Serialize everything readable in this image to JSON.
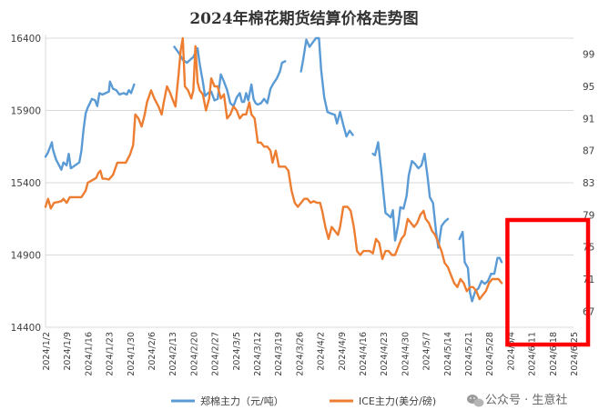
{
  "chart_data": {
    "type": "line",
    "title": "2024年棉花期货结算价格走势图",
    "left_axis": {
      "ticks": [
        14400,
        14900,
        15400,
        15900,
        16400
      ],
      "range": [
        14400,
        16400
      ]
    },
    "right_axis": {
      "ticks": [
        67,
        71,
        75,
        79,
        83,
        87,
        91,
        95,
        99
      ],
      "range": [
        65,
        101
      ]
    },
    "x_labels": [
      "2024/1/2",
      "2024/1/9",
      "2024/1/16",
      "2024/1/23",
      "2024/1/30",
      "2024/2/6",
      "2024/2/13",
      "2024/2/20",
      "2024/2/27",
      "2024/3/5",
      "2024/3/12",
      "2024/3/19",
      "2024/3/26",
      "2024/4/2",
      "2024/4/9",
      "2024/4/16",
      "2024/4/23",
      "2024/4/30",
      "2024/5/7",
      "2024/5/14",
      "2024/5/21",
      "2024/5/28",
      "2024/6/4",
      "2024/6/11",
      "2024/6/18",
      "2024/6/25"
    ],
    "series": [
      {
        "name": "郑棉主力（元/吨）",
        "axis": "left",
        "color": "#5b9bd5",
        "points": [
          [
            0,
            15580
          ],
          [
            0.12,
            15610
          ],
          [
            0.3,
            15680
          ],
          [
            0.35,
            15630
          ],
          [
            0.5,
            15560
          ],
          [
            0.75,
            15490
          ],
          [
            0.85,
            15540
          ],
          [
            1.0,
            15520
          ],
          [
            1.1,
            15600
          ],
          [
            1.2,
            15500
          ],
          [
            1.4,
            15520
          ],
          [
            1.6,
            15540
          ],
          [
            1.7,
            15620
          ],
          [
            1.8,
            15770
          ],
          [
            1.9,
            15880
          ],
          [
            2.0,
            15920
          ],
          [
            2.2,
            15980
          ],
          [
            2.35,
            15970
          ],
          [
            2.45,
            15930
          ],
          [
            2.55,
            16020
          ],
          [
            2.7,
            16010
          ],
          [
            2.85,
            16020
          ],
          [
            3.0,
            16030
          ],
          [
            3.05,
            16100
          ],
          [
            3.2,
            16050
          ],
          [
            3.35,
            16040
          ],
          [
            3.5,
            16010
          ],
          [
            3.7,
            16020
          ],
          [
            3.85,
            16010
          ],
          [
            3.95,
            16040
          ],
          [
            4.05,
            16020
          ],
          [
            4.2,
            16080
          ],
          null,
          [
            6.1,
            16340
          ],
          [
            6.3,
            16300
          ],
          [
            6.5,
            16250
          ],
          [
            6.7,
            16230
          ],
          [
            6.85,
            16250
          ],
          [
            7.0,
            16270
          ],
          [
            7.2,
            16330
          ],
          [
            7.3,
            16220
          ],
          [
            7.45,
            16100
          ],
          [
            7.55,
            16000
          ],
          [
            7.7,
            16020
          ],
          [
            7.85,
            16030
          ],
          [
            8.0,
            15970
          ],
          [
            8.15,
            15980
          ],
          [
            8.3,
            16150
          ],
          [
            8.45,
            16100
          ],
          [
            8.6,
            16040
          ],
          [
            8.75,
            15950
          ],
          [
            8.9,
            15930
          ],
          [
            9.05,
            15990
          ],
          [
            9.2,
            16020
          ],
          [
            9.3,
            15960
          ],
          [
            9.4,
            15960
          ],
          [
            9.5,
            16020
          ],
          [
            9.6,
            15970
          ],
          [
            9.75,
            16080
          ],
          [
            9.85,
            15980
          ],
          [
            9.95,
            15950
          ],
          [
            10.05,
            15940
          ],
          [
            10.2,
            15950
          ],
          [
            10.35,
            15980
          ],
          [
            10.5,
            15950
          ],
          [
            10.65,
            16050
          ],
          [
            10.8,
            16090
          ],
          [
            10.95,
            16120
          ],
          [
            11.1,
            16170
          ],
          [
            11.2,
            16230
          ],
          [
            11.35,
            16240
          ],
          null,
          [
            12.1,
            16170
          ],
          [
            12.2,
            16250
          ],
          [
            12.35,
            16390
          ],
          [
            12.5,
            16340
          ],
          [
            12.65,
            16370
          ],
          [
            12.8,
            16400
          ],
          [
            12.95,
            16400
          ],
          [
            13.05,
            16180
          ],
          [
            13.2,
            15990
          ],
          [
            13.35,
            15890
          ],
          [
            13.5,
            15880
          ],
          [
            13.7,
            15870
          ],
          [
            13.8,
            15810
          ],
          [
            13.95,
            15890
          ],
          [
            14.1,
            15800
          ],
          [
            14.25,
            15720
          ],
          [
            14.4,
            15760
          ],
          [
            14.55,
            15730
          ],
          null,
          [
            15.5,
            15600
          ],
          [
            15.6,
            15590
          ],
          [
            15.75,
            15680
          ],
          [
            15.9,
            15480
          ],
          [
            16.0,
            15330
          ],
          [
            16.1,
            15190
          ],
          [
            16.2,
            15180
          ],
          [
            16.35,
            15160
          ],
          [
            16.45,
            15210
          ],
          [
            16.55,
            15000
          ],
          [
            16.7,
            15110
          ],
          [
            16.8,
            15230
          ],
          [
            16.95,
            15220
          ],
          [
            17.1,
            15310
          ],
          [
            17.2,
            15450
          ],
          [
            17.35,
            15550
          ],
          [
            17.5,
            15530
          ],
          [
            17.65,
            15500
          ],
          [
            17.8,
            15520
          ],
          [
            17.95,
            15600
          ],
          [
            18.1,
            15430
          ],
          [
            18.2,
            15300
          ],
          [
            18.35,
            15260
          ],
          [
            18.5,
            15050
          ],
          [
            18.6,
            14950
          ],
          [
            18.75,
            15100
          ],
          [
            18.9,
            15130
          ],
          [
            19.05,
            15150
          ],
          null,
          [
            19.6,
            15010
          ],
          [
            19.75,
            15060
          ],
          [
            19.85,
            14850
          ],
          [
            20.0,
            14810
          ],
          [
            20.1,
            14640
          ],
          [
            20.2,
            14580
          ],
          [
            20.35,
            14650
          ],
          [
            20.5,
            14670
          ],
          [
            20.65,
            14720
          ],
          [
            20.8,
            14700
          ],
          [
            20.95,
            14720
          ],
          [
            21.1,
            14770
          ],
          [
            21.25,
            14770
          ],
          [
            21.4,
            14880
          ],
          [
            21.5,
            14880
          ],
          [
            21.6,
            14850
          ]
        ]
      },
      {
        "name": "ICE主力(美分/磅)",
        "axis": "right",
        "color": "#ed7d31",
        "points": [
          [
            0,
            80.0
          ],
          [
            0.12,
            81.0
          ],
          [
            0.25,
            79.8
          ],
          [
            0.4,
            80.5
          ],
          [
            0.6,
            80.6
          ],
          [
            0.75,
            80.7
          ],
          [
            0.85,
            81.0
          ],
          [
            1.0,
            80.5
          ],
          [
            1.15,
            81.2
          ],
          [
            1.3,
            81.2
          ],
          [
            1.5,
            81.2
          ],
          [
            1.7,
            81.2
          ],
          [
            1.9,
            82.0
          ],
          [
            2.0,
            83.0
          ],
          [
            2.2,
            83.3
          ],
          [
            2.4,
            83.6
          ],
          [
            2.5,
            84.2
          ],
          [
            2.6,
            84.5
          ],
          [
            2.7,
            83.5
          ],
          [
            2.85,
            83.5
          ],
          [
            3.0,
            83.4
          ],
          [
            3.2,
            84.0
          ],
          [
            3.4,
            85.5
          ],
          [
            3.6,
            85.5
          ],
          [
            3.8,
            85.5
          ],
          [
            4.0,
            86.5
          ],
          [
            4.15,
            87.7
          ],
          [
            4.25,
            91.5
          ],
          [
            4.4,
            91.0
          ],
          [
            4.55,
            90.0
          ],
          [
            4.7,
            91.5
          ],
          [
            4.8,
            93.0
          ],
          [
            5.0,
            94.5
          ],
          [
            5.15,
            93.5
          ],
          [
            5.35,
            92.5
          ],
          [
            5.5,
            91.5
          ],
          [
            5.6,
            93.0
          ],
          [
            5.75,
            95.0
          ],
          [
            5.9,
            94.2
          ],
          [
            6.0,
            93.5
          ],
          [
            6.15,
            92.5
          ],
          [
            6.3,
            96.5
          ],
          [
            6.4,
            99.5
          ],
          [
            6.5,
            101.0
          ],
          [
            6.6,
            95.0
          ],
          [
            6.75,
            94.5
          ],
          [
            6.9,
            93.5
          ],
          [
            7.0,
            94.5
          ],
          [
            7.1,
            100.0
          ],
          [
            7.2,
            95.5
          ],
          [
            7.3,
            94.5
          ],
          [
            7.45,
            94.0
          ],
          [
            7.6,
            92.0
          ],
          [
            7.75,
            93.5
          ],
          [
            7.85,
            96.0
          ],
          [
            8.0,
            95.0
          ],
          [
            8.15,
            95.0
          ],
          [
            8.3,
            93.5
          ],
          [
            8.45,
            94.0
          ],
          [
            8.6,
            91.0
          ],
          [
            8.75,
            91.5
          ],
          [
            8.9,
            92.5
          ],
          [
            9.05,
            92.0
          ],
          [
            9.2,
            91.0
          ],
          [
            9.35,
            91.5
          ],
          [
            9.5,
            91.5
          ],
          [
            9.65,
            93.0
          ],
          [
            9.75,
            91.5
          ],
          [
            9.9,
            91.0
          ],
          [
            10.05,
            88.0
          ],
          [
            10.2,
            88.0
          ],
          [
            10.35,
            87.5
          ],
          [
            10.5,
            87.5
          ],
          [
            10.65,
            87.0
          ],
          [
            10.75,
            85.5
          ],
          [
            10.9,
            87.0
          ],
          [
            11.05,
            85.0
          ],
          [
            11.2,
            85.0
          ],
          [
            11.35,
            85.0
          ],
          [
            11.5,
            84.5
          ],
          [
            11.65,
            82.0
          ],
          [
            11.8,
            80.5
          ],
          [
            11.95,
            80.0
          ],
          [
            12.1,
            80.5
          ],
          [
            12.25,
            81.0
          ],
          [
            12.4,
            81.0
          ],
          [
            12.55,
            80.5
          ],
          [
            12.7,
            80.7
          ],
          [
            12.85,
            80.5
          ],
          [
            13.0,
            80.5
          ],
          [
            13.1,
            79.5
          ],
          [
            13.25,
            77.5
          ],
          [
            13.4,
            76.0
          ],
          [
            13.55,
            77.5
          ],
          [
            13.7,
            77.0
          ],
          [
            13.85,
            76.5
          ],
          [
            13.95,
            77.5
          ],
          [
            14.1,
            80.0
          ],
          [
            14.3,
            80.0
          ],
          [
            14.45,
            79.5
          ],
          [
            14.6,
            77.5
          ],
          [
            14.75,
            74.5
          ],
          [
            14.9,
            74.0
          ],
          [
            15.05,
            74.5
          ],
          [
            15.2,
            74.5
          ],
          [
            15.35,
            74.5
          ],
          [
            15.5,
            74.2
          ],
          [
            15.65,
            76.0
          ],
          [
            15.8,
            75.5
          ],
          [
            15.95,
            73.5
          ],
          [
            16.1,
            74.5
          ],
          [
            16.25,
            74.5
          ],
          [
            16.4,
            74.0
          ],
          [
            16.55,
            74.0
          ],
          [
            16.7,
            75.0
          ],
          [
            16.85,
            76.0
          ],
          [
            17.0,
            76.5
          ],
          [
            17.15,
            78.5
          ],
          [
            17.3,
            78.0
          ],
          [
            17.45,
            77.5
          ],
          [
            17.6,
            78.0
          ],
          [
            17.75,
            79.0
          ],
          [
            17.9,
            79.5
          ],
          [
            18.0,
            78.5
          ],
          [
            18.15,
            78.0
          ],
          [
            18.3,
            77.0
          ],
          [
            18.45,
            76.5
          ],
          [
            18.6,
            75.5
          ],
          [
            18.75,
            74.5
          ],
          [
            18.9,
            73.0
          ],
          [
            19.05,
            72.5
          ],
          [
            19.2,
            71.5
          ],
          [
            19.35,
            70.5
          ],
          [
            19.5,
            70.0
          ],
          [
            19.65,
            71.0
          ],
          [
            19.8,
            70.5
          ],
          [
            19.95,
            69.5
          ],
          [
            20.1,
            70.0
          ],
          [
            20.25,
            70.0
          ],
          [
            20.4,
            69.5
          ],
          [
            20.55,
            68.5
          ],
          [
            20.7,
            69.0
          ],
          [
            20.85,
            69.5
          ],
          [
            21.0,
            70.5
          ],
          [
            21.15,
            71.0
          ],
          [
            21.3,
            71.0
          ],
          [
            21.45,
            71.0
          ],
          [
            21.6,
            70.5
          ]
        ]
      }
    ],
    "highlight_box": {
      "from_label": "2024/6/4",
      "to_label": "2024/6/25",
      "color": "#ff0000"
    },
    "legend_position": "bottom-center"
  },
  "legend": [
    {
      "label": "郑棉主力（元/吨）",
      "color": "#5b9bd5"
    },
    {
      "label": "ICE主力(美分/磅)",
      "color": "#ed7d31"
    }
  ],
  "watermark": {
    "text": "公众号 · 生意社"
  }
}
